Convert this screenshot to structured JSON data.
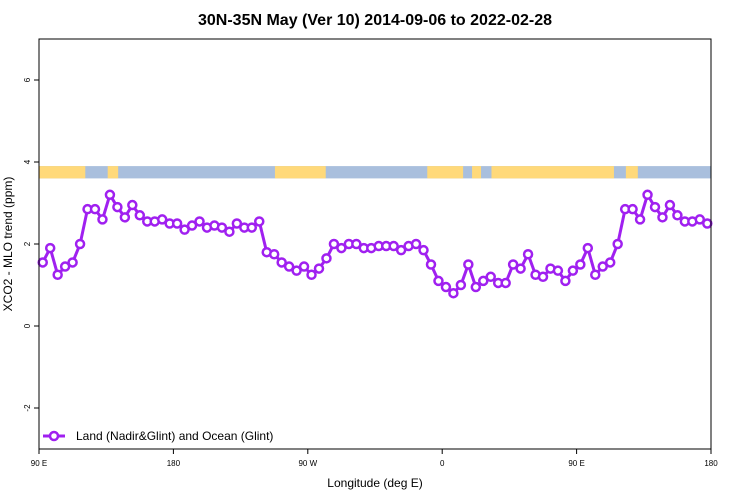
{
  "chart_data": {
    "type": "line",
    "title": "30N-35N May (Ver 10)   2014-09-06 to 2022-02-28",
    "xlabel": "Longitude (deg E)",
    "ylabel": "XCO2 - MLO trend (ppm)",
    "xlim": [
      90,
      540
    ],
    "ylim": [
      -3,
      7
    ],
    "x_ticks": [
      {
        "value": 90,
        "label": "90 E"
      },
      {
        "value": 180,
        "label": "180"
      },
      {
        "value": 270,
        "label": "90 W"
      },
      {
        "value": 360,
        "label": "0"
      },
      {
        "value": 450,
        "label": "90 E"
      },
      {
        "value": 540,
        "label": "180"
      }
    ],
    "y_ticks": [
      {
        "value": -2,
        "label": "-2"
      },
      {
        "value": 0,
        "label": "0"
      },
      {
        "value": 2,
        "label": "2"
      },
      {
        "value": 4,
        "label": "4"
      },
      {
        "value": 6,
        "label": "6"
      }
    ],
    "grid": false,
    "legend_position": "bottom-left",
    "surface_band": {
      "y_range": [
        3.6,
        3.9
      ],
      "land_color": "#FFD97A",
      "ocean_color": "#A9BFDD",
      "land_segments": [
        [
          90,
          121
        ],
        [
          136,
          143
        ],
        [
          248,
          282
        ],
        [
          350,
          374
        ],
        [
          380,
          386
        ],
        [
          393,
          475
        ],
        [
          483,
          491
        ]
      ]
    },
    "series": [
      {
        "name": "Land (Nadir&Glint) and Ocean (Glint)",
        "color": "#A020F0",
        "x": [
          92.5,
          97.5,
          102.5,
          107.5,
          112.5,
          117.5,
          122.5,
          127.5,
          132.5,
          137.5,
          142.5,
          147.5,
          152.5,
          157.5,
          162.5,
          167.5,
          172.5,
          177.5,
          182.5,
          187.5,
          192.5,
          197.5,
          202.5,
          207.5,
          212.5,
          217.5,
          222.5,
          227.5,
          232.5,
          237.5,
          242.5,
          247.5,
          252.5,
          257.5,
          262.5,
          267.5,
          272.5,
          277.5,
          282.5,
          287.5,
          292.5,
          297.5,
          302.5,
          307.5,
          312.5,
          317.5,
          322.5,
          327.5,
          332.5,
          337.5,
          342.5,
          347.5,
          352.5,
          357.5,
          362.5,
          367.5,
          372.5,
          377.5,
          382.5,
          387.5,
          392.5,
          397.5,
          402.5,
          407.5,
          412.5,
          417.5,
          422.5,
          427.5,
          432.5,
          437.5,
          442.5,
          447.5,
          452.5,
          457.5,
          462.5,
          467.5,
          472.5,
          477.5,
          482.5,
          487.5,
          492.5,
          497.5,
          502.5,
          507.5,
          512.5,
          517.5,
          522.5,
          527.5,
          532.5,
          537.5
        ],
        "y": [
          1.55,
          1.9,
          1.25,
          1.45,
          1.55,
          2.0,
          2.85,
          2.85,
          2.6,
          3.2,
          2.9,
          2.65,
          2.95,
          2.7,
          2.55,
          2.55,
          2.6,
          2.5,
          2.5,
          2.35,
          2.45,
          2.55,
          2.4,
          2.45,
          2.4,
          2.3,
          2.5,
          2.4,
          2.4,
          2.55,
          1.8,
          1.75,
          1.55,
          1.45,
          1.35,
          1.45,
          1.25,
          1.4,
          1.65,
          2.0,
          1.9,
          2.0,
          2.0,
          1.9,
          1.9,
          1.95,
          1.95,
          1.95,
          1.85,
          1.95,
          2.0,
          1.85,
          1.5,
          1.1,
          0.95,
          0.8,
          1.0,
          1.5,
          0.95,
          1.1,
          1.2,
          1.05,
          1.05,
          1.5,
          1.4,
          1.75,
          1.25,
          1.2,
          1.4,
          1.35,
          1.1,
          1.35,
          1.5,
          1.9,
          1.25,
          1.45,
          1.55,
          2.0,
          2.85,
          2.85,
          2.6,
          3.2,
          2.9,
          2.65,
          2.95,
          2.7,
          2.55,
          2.55,
          2.6,
          2.5
        ]
      }
    ]
  }
}
